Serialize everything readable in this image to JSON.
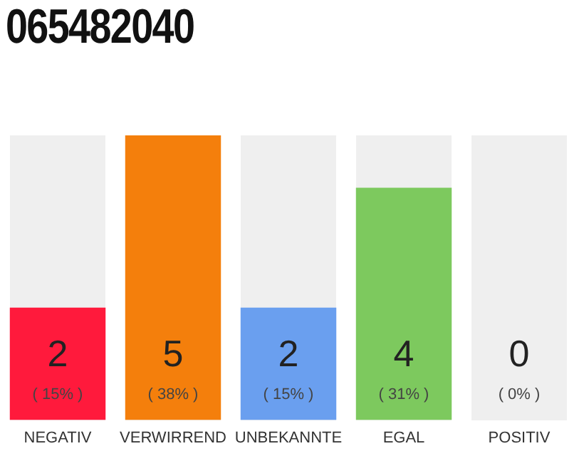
{
  "chart_data": {
    "type": "bar",
    "title": "065482040",
    "categories": [
      "NEGATIV",
      "VERWIRREND",
      "UNBEKANNTE",
      "EGAL",
      "POSITIV"
    ],
    "values": [
      15,
      38,
      15,
      31,
      0
    ],
    "colors": [
      "#ff1a3c",
      "#f47f0c",
      "#6a9fef",
      "#7dc95e",
      "#c8c8c8"
    ],
    "value_labels": [
      "( 15% )",
      "( 38% )",
      "( 15% )",
      "( 31% )",
      "( 0% )"
    ],
    "annotations": [
      "2",
      "5",
      "2",
      "4",
      "0"
    ],
    "tick_labels": "x",
    "grid": false,
    "legend": false
  }
}
